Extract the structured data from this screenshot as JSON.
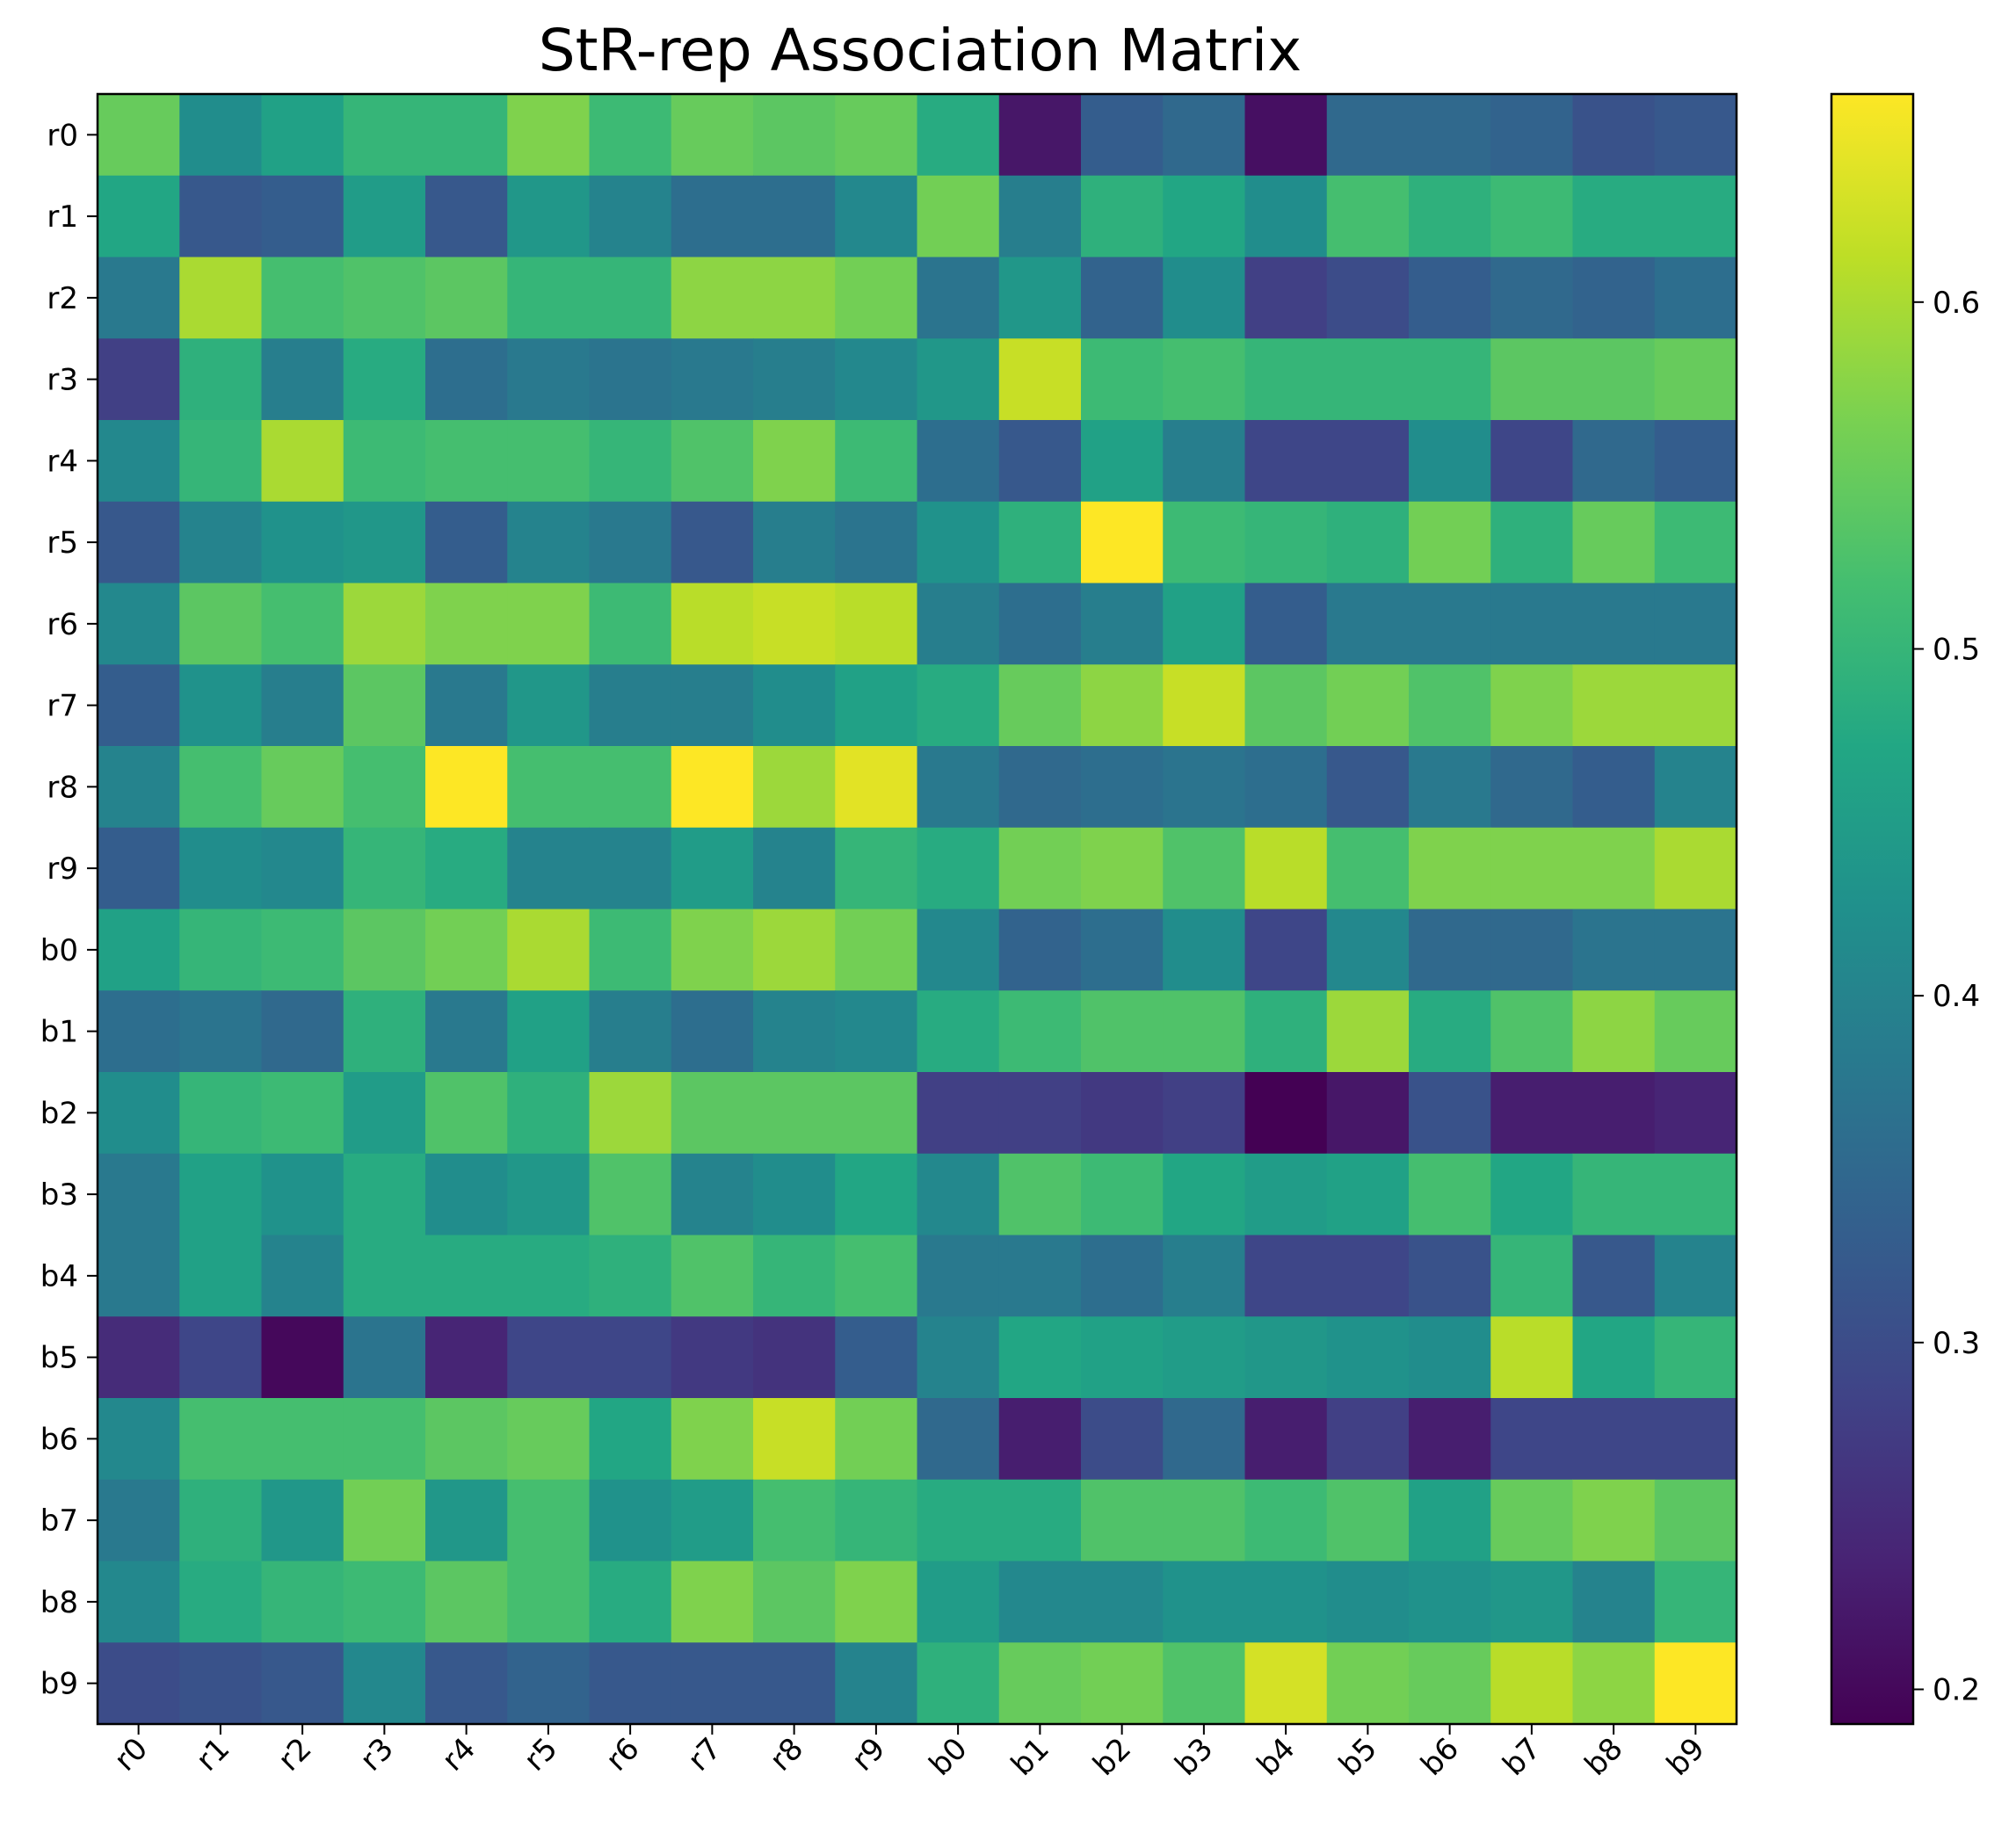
{
  "chart_data": {
    "type": "heatmap",
    "title": "StR-rep Association Matrix",
    "xlabel": "",
    "ylabel": "",
    "x_categories": [
      "r0",
      "r1",
      "r2",
      "r3",
      "r4",
      "r5",
      "r6",
      "r7",
      "r8",
      "r9",
      "b0",
      "b1",
      "b2",
      "b3",
      "b4",
      "b5",
      "b6",
      "b7",
      "b8",
      "b9"
    ],
    "y_categories": [
      "r0",
      "r1",
      "r2",
      "r3",
      "r4",
      "r5",
      "r6",
      "r7",
      "r8",
      "r9",
      "b0",
      "b1",
      "b2",
      "b3",
      "b4",
      "b5",
      "b6",
      "b7",
      "b8",
      "b9"
    ],
    "values": [
      [
        0.55,
        0.42,
        0.46,
        0.5,
        0.5,
        0.57,
        0.51,
        0.55,
        0.54,
        0.55,
        0.48,
        0.22,
        0.33,
        0.35,
        0.21,
        0.35,
        0.35,
        0.34,
        0.31,
        0.32
      ],
      [
        0.47,
        0.32,
        0.33,
        0.45,
        0.32,
        0.44,
        0.4,
        0.36,
        0.36,
        0.41,
        0.56,
        0.39,
        0.49,
        0.47,
        0.42,
        0.52,
        0.49,
        0.51,
        0.48,
        0.48
      ],
      [
        0.38,
        0.6,
        0.52,
        0.53,
        0.54,
        0.5,
        0.5,
        0.58,
        0.58,
        0.56,
        0.37,
        0.44,
        0.34,
        0.42,
        0.28,
        0.3,
        0.33,
        0.35,
        0.34,
        0.36
      ],
      [
        0.28,
        0.49,
        0.39,
        0.48,
        0.36,
        0.38,
        0.37,
        0.38,
        0.39,
        0.41,
        0.44,
        0.62,
        0.51,
        0.52,
        0.5,
        0.5,
        0.5,
        0.54,
        0.54,
        0.55
      ],
      [
        0.41,
        0.5,
        0.6,
        0.51,
        0.52,
        0.52,
        0.5,
        0.53,
        0.57,
        0.51,
        0.36,
        0.32,
        0.46,
        0.39,
        0.29,
        0.29,
        0.42,
        0.29,
        0.35,
        0.33
      ],
      [
        0.32,
        0.4,
        0.43,
        0.44,
        0.33,
        0.4,
        0.38,
        0.32,
        0.39,
        0.37,
        0.43,
        0.49,
        0.66,
        0.51,
        0.5,
        0.49,
        0.56,
        0.49,
        0.55,
        0.51
      ],
      [
        0.41,
        0.54,
        0.52,
        0.59,
        0.57,
        0.57,
        0.51,
        0.61,
        0.62,
        0.61,
        0.39,
        0.36,
        0.39,
        0.46,
        0.33,
        0.38,
        0.38,
        0.38,
        0.38,
        0.38
      ],
      [
        0.33,
        0.43,
        0.39,
        0.54,
        0.38,
        0.44,
        0.39,
        0.39,
        0.42,
        0.46,
        0.48,
        0.55,
        0.58,
        0.62,
        0.54,
        0.56,
        0.53,
        0.57,
        0.59,
        0.59
      ],
      [
        0.4,
        0.52,
        0.55,
        0.52,
        0.66,
        0.52,
        0.52,
        0.66,
        0.59,
        0.64,
        0.38,
        0.35,
        0.36,
        0.37,
        0.36,
        0.32,
        0.38,
        0.35,
        0.33,
        0.4
      ],
      [
        0.33,
        0.42,
        0.41,
        0.5,
        0.48,
        0.4,
        0.4,
        0.45,
        0.4,
        0.5,
        0.48,
        0.56,
        0.57,
        0.53,
        0.61,
        0.52,
        0.57,
        0.57,
        0.57,
        0.6
      ],
      [
        0.46,
        0.5,
        0.51,
        0.54,
        0.56,
        0.6,
        0.51,
        0.57,
        0.59,
        0.56,
        0.41,
        0.34,
        0.36,
        0.42,
        0.29,
        0.41,
        0.35,
        0.35,
        0.37,
        0.37
      ],
      [
        0.36,
        0.37,
        0.35,
        0.49,
        0.38,
        0.46,
        0.39,
        0.36,
        0.4,
        0.41,
        0.48,
        0.51,
        0.53,
        0.53,
        0.49,
        0.59,
        0.48,
        0.53,
        0.58,
        0.55
      ],
      [
        0.42,
        0.5,
        0.51,
        0.45,
        0.53,
        0.49,
        0.59,
        0.54,
        0.54,
        0.54,
        0.28,
        0.28,
        0.27,
        0.28,
        0.19,
        0.22,
        0.31,
        0.23,
        0.23,
        0.24
      ],
      [
        0.38,
        0.46,
        0.43,
        0.48,
        0.42,
        0.44,
        0.53,
        0.4,
        0.42,
        0.47,
        0.41,
        0.53,
        0.51,
        0.47,
        0.45,
        0.46,
        0.52,
        0.47,
        0.5,
        0.5
      ],
      [
        0.38,
        0.46,
        0.4,
        0.48,
        0.48,
        0.48,
        0.49,
        0.53,
        0.5,
        0.52,
        0.38,
        0.38,
        0.36,
        0.39,
        0.29,
        0.29,
        0.31,
        0.5,
        0.32,
        0.4
      ],
      [
        0.25,
        0.29,
        0.2,
        0.37,
        0.24,
        0.29,
        0.29,
        0.27,
        0.26,
        0.33,
        0.4,
        0.47,
        0.46,
        0.45,
        0.44,
        0.43,
        0.42,
        0.61,
        0.47,
        0.5
      ],
      [
        0.41,
        0.52,
        0.52,
        0.52,
        0.54,
        0.55,
        0.47,
        0.57,
        0.62,
        0.56,
        0.35,
        0.23,
        0.3,
        0.35,
        0.23,
        0.28,
        0.23,
        0.29,
        0.29,
        0.29
      ],
      [
        0.38,
        0.49,
        0.44,
        0.56,
        0.44,
        0.52,
        0.43,
        0.45,
        0.52,
        0.5,
        0.48,
        0.48,
        0.53,
        0.53,
        0.51,
        0.53,
        0.46,
        0.55,
        0.57,
        0.54
      ],
      [
        0.41,
        0.48,
        0.5,
        0.51,
        0.54,
        0.52,
        0.48,
        0.57,
        0.54,
        0.57,
        0.45,
        0.41,
        0.41,
        0.43,
        0.43,
        0.42,
        0.43,
        0.44,
        0.4,
        0.5
      ],
      [
        0.3,
        0.31,
        0.32,
        0.41,
        0.32,
        0.34,
        0.32,
        0.32,
        0.32,
        0.4,
        0.49,
        0.55,
        0.56,
        0.53,
        0.63,
        0.56,
        0.55,
        0.61,
        0.58,
        0.66
      ]
    ],
    "colormap": "viridis",
    "vmin": 0.19,
    "vmax": 0.66,
    "colorbar_ticks": [
      "0.2",
      "0.3",
      "0.4",
      "0.5",
      "0.6"
    ],
    "grid": false,
    "legend": "colorbar-right"
  }
}
